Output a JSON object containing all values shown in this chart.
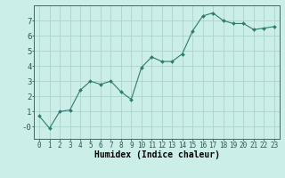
{
  "x": [
    0,
    1,
    2,
    3,
    4,
    5,
    6,
    7,
    8,
    9,
    10,
    11,
    12,
    13,
    14,
    15,
    16,
    17,
    18,
    19,
    20,
    21,
    22,
    23
  ],
  "y": [
    0.7,
    -0.1,
    1.0,
    1.1,
    2.4,
    3.0,
    2.8,
    3.0,
    2.3,
    1.8,
    3.9,
    4.6,
    4.3,
    4.3,
    4.8,
    6.3,
    7.3,
    7.5,
    7.0,
    6.8,
    6.8,
    6.4,
    6.5,
    6.6
  ],
  "line_color": "#2d7a6e",
  "marker": "D",
  "marker_size": 2.0,
  "linewidth": 0.8,
  "bg_color": "#cceee8",
  "grid_color": "#aad4ce",
  "xlabel": "Humidex (Indice chaleur)",
  "xlabel_fontsize": 7,
  "ytick_labels": [
    "-0",
    "1",
    "2",
    "3",
    "4",
    "5",
    "6",
    "7"
  ],
  "ytick_vals": [
    0,
    1,
    2,
    3,
    4,
    5,
    6,
    7
  ],
  "xlim": [
    -0.5,
    23.5
  ],
  "ylim": [
    -0.8,
    8.0
  ],
  "xtick_fontsize": 5.5,
  "ytick_fontsize": 6.5
}
